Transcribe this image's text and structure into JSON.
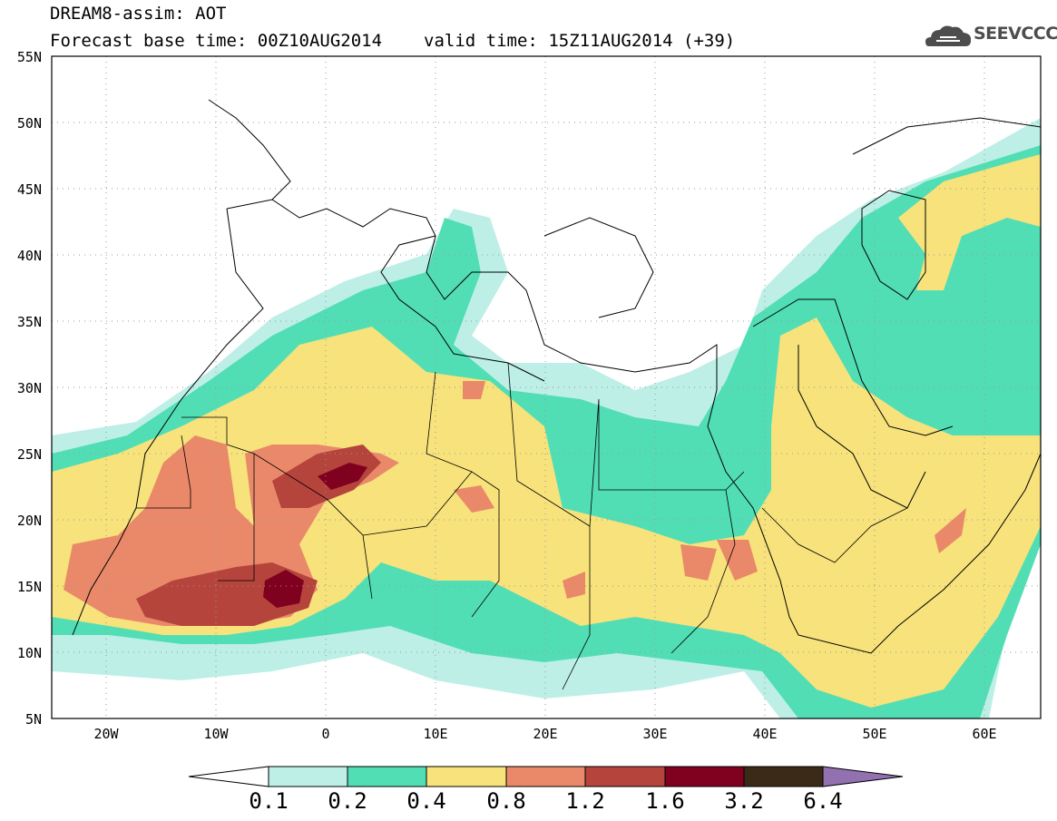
{
  "header": {
    "line1": "DREAM8-assim: AOT",
    "base_time": "Forecast base time: 00Z10AUG2014",
    "valid_time": "valid time: 15Z11AUG2014 (+39)"
  },
  "logo": {
    "text": "SEEVCCC",
    "icon": "cloud-logo-icon"
  },
  "map": {
    "region": "Sahara / Mediterranean / Middle East",
    "lon_range": [
      -25,
      65
    ],
    "lat_range": [
      5,
      55
    ],
    "lat_labels": [
      "55N",
      "50N",
      "45N",
      "40N",
      "35N",
      "30N",
      "25N",
      "20N",
      "15N",
      "10N",
      "5N"
    ],
    "lon_labels": [
      "20W",
      "10W",
      "0",
      "10E",
      "20E",
      "30E",
      "40E",
      "50E",
      "60E"
    ]
  },
  "colorbar": {
    "labels": [
      "0.1",
      "0.2",
      "0.4",
      "0.8",
      "1.2",
      "1.6",
      "3.2",
      "6.4"
    ],
    "colors": [
      "#bdefe7",
      "#52deb5",
      "#f7e27b",
      "#e9896a",
      "#b5443c",
      "#800020",
      "#3b2a18",
      "#9370b0"
    ]
  }
}
